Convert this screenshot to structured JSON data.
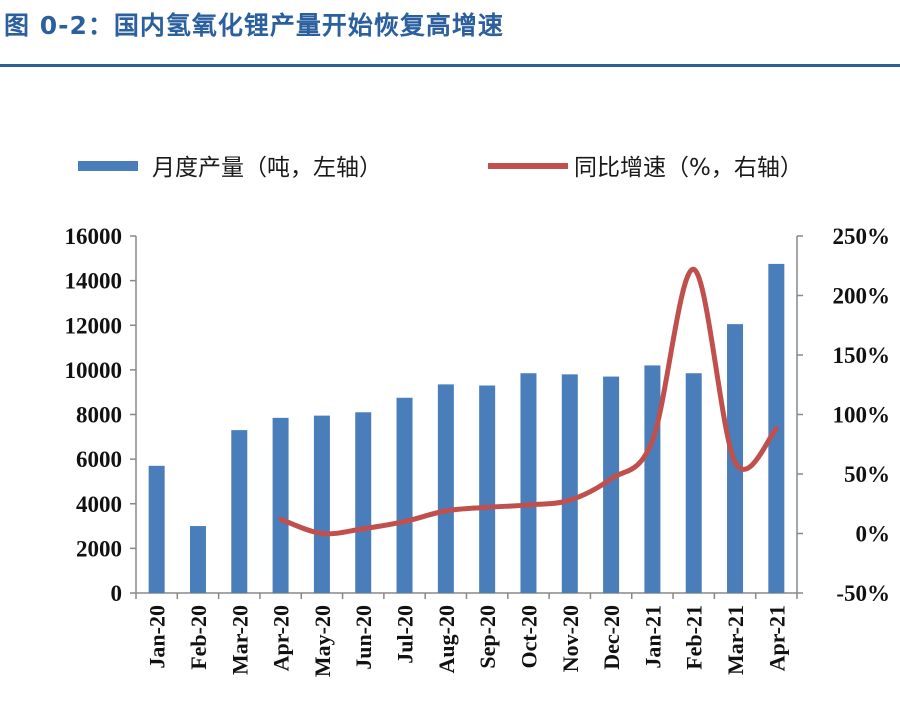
{
  "figure_title": "图 0-2：国内氢氧化锂产量开始恢复高增速",
  "colors": {
    "title": "#2b5f9e",
    "bar": "#4a7ebb",
    "line": "#c0504d",
    "axis": "#888888"
  },
  "chart_data": {
    "type": "bar",
    "categories": [
      "Jan-20",
      "Feb-20",
      "Mar-20",
      "Apr-20",
      "May-20",
      "Jun-20",
      "Jul-20",
      "Aug-20",
      "Sep-20",
      "Oct-20",
      "Nov-20",
      "Dec-20",
      "Jan-21",
      "Feb-21",
      "Mar-21",
      "Apr-21"
    ],
    "series": [
      {
        "name": "月度产量（吨，左轴）",
        "type": "bar",
        "axis": "left",
        "values": [
          5700,
          3000,
          7300,
          7850,
          7950,
          8100,
          8750,
          9350,
          9300,
          9850,
          9800,
          9700,
          10200,
          9850,
          12050,
          14750
        ]
      },
      {
        "name": "同比增速（%，右轴）",
        "type": "line",
        "axis": "right",
        "values": [
          null,
          null,
          null,
          12,
          0,
          4,
          10,
          19,
          22,
          24,
          28,
          46,
          78,
          222,
          60,
          88
        ]
      }
    ],
    "y_left": {
      "min": 0,
      "max": 16000,
      "ticks": [
        "0",
        "2000",
        "4000",
        "6000",
        "8000",
        "10000",
        "12000",
        "14000",
        "16000"
      ]
    },
    "y_right": {
      "min": -50,
      "max": 250,
      "ticks": [
        "-50%",
        "0%",
        "50%",
        "100%",
        "150%",
        "200%",
        "250%"
      ]
    },
    "legend_position": "top",
    "grid": false
  }
}
